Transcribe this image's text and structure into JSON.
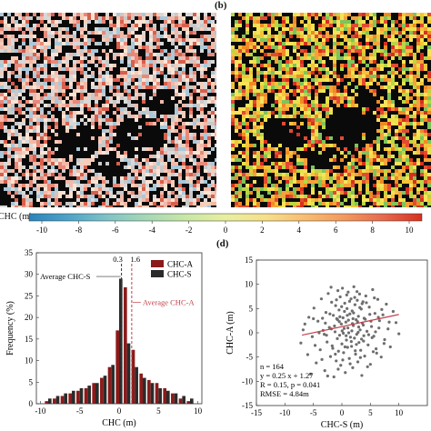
{
  "figure": {
    "panel_labels": {
      "b": "(b)",
      "d": "(d)"
    }
  },
  "colorbar": {
    "label": "CHC (m)",
    "ticks": [
      "-10",
      "-8",
      "-6",
      "-4",
      "-2",
      "0",
      "2",
      "4",
      "6",
      "8",
      "10"
    ],
    "colors": [
      "#2b83ba",
      "#4fa3c9",
      "#80c4c6",
      "#a6d8b6",
      "#c9e7a6",
      "#e8efa0",
      "#f7e08c",
      "#f9bd72",
      "#f39a5e",
      "#e66b4f",
      "#d7301f"
    ]
  },
  "chart_data": [
    {
      "type": "bar",
      "panel": "c",
      "title": "",
      "xlabel": "CHC (m)",
      "ylabel": "Frequency (%)",
      "xlim": [
        -10.5,
        10.5
      ],
      "ylim": [
        0,
        35
      ],
      "xticks": [
        "-10",
        "-5",
        "0",
        "5",
        "10"
      ],
      "yticks": [
        "0",
        "5",
        "10",
        "15",
        "20",
        "25",
        "30",
        "35"
      ],
      "bin_centers": [
        -9,
        -8,
        -7,
        -6,
        -5,
        -4,
        -3,
        -2,
        -1,
        0,
        1,
        2,
        3,
        4,
        5,
        6,
        7,
        8,
        9
      ],
      "series": [
        {
          "name": "CHC-A",
          "color": "#8b1a1a",
          "values": [
            0.6,
            1.2,
            1.8,
            2.4,
            3.0,
            3.6,
            4.8,
            6.0,
            8.5,
            17.0,
            27.0,
            12.5,
            7.0,
            5.5,
            4.8,
            3.6,
            2.4,
            1.2,
            0.6
          ]
        },
        {
          "name": "CHC-S",
          "color": "#2b2b2b",
          "values": [
            1.2,
            1.8,
            2.4,
            3.0,
            3.6,
            4.2,
            4.8,
            6.5,
            9.0,
            29.0,
            14.0,
            8.5,
            6.0,
            4.8,
            3.6,
            3.0,
            2.4,
            1.8,
            1.2
          ]
        }
      ],
      "annotations": [
        {
          "text": "Average CHC-S",
          "x": 0.3
        },
        {
          "text": "Average CHC-A",
          "x": 1.6
        },
        {
          "text": "0.3",
          "x": 0.3
        },
        {
          "text": "1.6",
          "x": 1.6
        }
      ],
      "legend_position": "top-right"
    },
    {
      "type": "scatter",
      "panel": "d",
      "title": "",
      "xlabel": "CHC-S (m)",
      "ylabel": "CHC-A (m)",
      "xlim": [
        -15,
        15
      ],
      "ylim": [
        -15,
        15
      ],
      "xticks": [
        "-15",
        "-10",
        "-5",
        "0",
        "5",
        "10"
      ],
      "yticks": [
        "-15",
        "-10",
        "-5",
        "0",
        "5",
        "10",
        "15"
      ],
      "point_color": "#6e6e6e",
      "fit_line": {
        "slope": 0.25,
        "intercept": 1.27,
        "x_range": [
          -7,
          10
        ],
        "color": "#c0404a"
      },
      "stats": [
        "n = 164",
        "y = 0.25 x + 1.27",
        "R = 0.15, p = 0.041",
        "RMSE = 4.84m"
      ],
      "points": [
        [
          -7.2,
          -2.1
        ],
        [
          -6.5,
          1.8
        ],
        [
          -6.0,
          -4.5
        ],
        [
          -5.8,
          3.2
        ],
        [
          -5.2,
          -0.8
        ],
        [
          -4.9,
          5.1
        ],
        [
          -4.5,
          -6.2
        ],
        [
          -4.2,
          2.4
        ],
        [
          -3.8,
          -3.5
        ],
        [
          -3.6,
          7.0
        ],
        [
          -3.3,
          0.5
        ],
        [
          -3.0,
          -7.8
        ],
        [
          -2.8,
          4.2
        ],
        [
          -2.6,
          -1.9
        ],
        [
          -2.4,
          8.1
        ],
        [
          -2.2,
          1.1
        ],
        [
          -2.0,
          -4.9
        ],
        [
          -1.8,
          6.3
        ],
        [
          -1.7,
          -2.7
        ],
        [
          -1.5,
          3.6
        ],
        [
          -1.4,
          -9.1
        ],
        [
          -1.2,
          0.2
        ],
        [
          -1.1,
          5.6
        ],
        [
          -1.0,
          -5.8
        ],
        [
          -0.9,
          2.9
        ],
        [
          -0.8,
          -1.2
        ],
        [
          -0.7,
          8.7
        ],
        [
          -0.6,
          -3.8
        ],
        [
          -0.5,
          4.7
        ],
        [
          -0.4,
          -0.5
        ],
        [
          -0.3,
          7.4
        ],
        [
          -0.2,
          -6.7
        ],
        [
          -0.1,
          1.8
        ],
        [
          0.0,
          -2.3
        ],
        [
          0.1,
          9.2
        ],
        [
          0.2,
          3.1
        ],
        [
          0.3,
          -4.1
        ],
        [
          0.4,
          0.9
        ],
        [
          0.5,
          6.1
        ],
        [
          0.6,
          -8.2
        ],
        [
          0.7,
          2.2
        ],
        [
          0.8,
          -1.5
        ],
        [
          0.9,
          5.0
        ],
        [
          1.0,
          -3.0
        ],
        [
          1.1,
          8.4
        ],
        [
          1.2,
          0.0
        ],
        [
          1.3,
          -5.3
        ],
        [
          1.4,
          3.9
        ],
        [
          1.5,
          -0.9
        ],
        [
          1.6,
          7.0
        ],
        [
          1.7,
          -2.8
        ],
        [
          1.8,
          4.5
        ],
        [
          1.9,
          -7.2
        ],
        [
          2.0,
          1.5
        ],
        [
          2.1,
          9.5
        ],
        [
          2.2,
          -1.1
        ],
        [
          2.3,
          5.8
        ],
        [
          2.4,
          -4.4
        ],
        [
          2.5,
          2.7
        ],
        [
          2.6,
          -0.3
        ],
        [
          2.7,
          6.7
        ],
        [
          2.8,
          -6.0
        ],
        [
          2.9,
          3.4
        ],
        [
          3.0,
          -2.0
        ],
        [
          3.1,
          8.0
        ],
        [
          3.2,
          0.6
        ],
        [
          3.3,
          -3.6
        ],
        [
          3.4,
          4.9
        ],
        [
          3.5,
          -8.8
        ],
        [
          3.6,
          2.0
        ],
        [
          3.7,
          6.4
        ],
        [
          3.8,
          -1.7
        ],
        [
          3.9,
          3.0
        ],
        [
          4.0,
          -4.8
        ],
        [
          4.2,
          7.6
        ],
        [
          4.4,
          0.3
        ],
        [
          4.6,
          -2.5
        ],
        [
          4.8,
          5.3
        ],
        [
          5.0,
          -6.5
        ],
        [
          5.2,
          1.3
        ],
        [
          5.4,
          8.9
        ],
        [
          5.6,
          -0.7
        ],
        [
          5.8,
          4.0
        ],
        [
          6.0,
          -3.3
        ],
        [
          6.3,
          6.9
        ],
        [
          6.6,
          2.5
        ],
        [
          6.9,
          -5.0
        ],
        [
          7.2,
          3.7
        ],
        [
          7.5,
          -1.4
        ],
        [
          7.8,
          5.9
        ],
        [
          8.1,
          0.8
        ],
        [
          8.5,
          -2.9
        ],
        [
          9.0,
          4.4
        ],
        [
          9.5,
          2.1
        ],
        [
          10.0,
          -0.2
        ],
        [
          -5.5,
          -8.5
        ],
        [
          -4.0,
          0.0
        ],
        [
          -3.5,
          -5.5
        ],
        [
          -2.9,
          2.0
        ],
        [
          -2.5,
          -8.9
        ],
        [
          -1.9,
          9.4
        ],
        [
          -1.6,
          -3.2
        ],
        [
          -1.3,
          1.4
        ],
        [
          -0.95,
          6.8
        ],
        [
          -0.65,
          -7.5
        ],
        [
          -0.35,
          3.3
        ],
        [
          -0.05,
          5.4
        ],
        [
          0.25,
          -0.1
        ],
        [
          0.55,
          -2.9
        ],
        [
          0.85,
          7.8
        ],
        [
          1.15,
          2.6
        ],
        [
          1.45,
          -6.4
        ],
        [
          1.75,
          0.4
        ],
        [
          2.05,
          4.1
        ],
        [
          2.35,
          -3.7
        ],
        [
          2.65,
          8.5
        ],
        [
          2.95,
          1.2
        ],
        [
          3.25,
          -5.1
        ],
        [
          3.55,
          6.0
        ],
        [
          3.85,
          -0.6
        ],
        [
          4.1,
          2.8
        ],
        [
          4.5,
          -7.0
        ],
        [
          4.9,
          3.8
        ],
        [
          5.3,
          -1.0
        ],
        [
          5.7,
          7.2
        ],
        [
          6.1,
          -4.2
        ],
        [
          6.5,
          1.0
        ],
        [
          7.0,
          4.8
        ],
        [
          -6.8,
          0.6
        ],
        [
          -5.0,
          2.9
        ],
        [
          -4.7,
          -2.6
        ],
        [
          -3.1,
          -0.3
        ],
        [
          -2.1,
          3.9
        ],
        [
          -1.15,
          -4.4
        ],
        [
          -0.45,
          2.3
        ],
        [
          0.15,
          -5.6
        ],
        [
          0.45,
          4.4
        ],
        [
          0.75,
          -0.6
        ],
        [
          1.05,
          1.0
        ],
        [
          1.35,
          6.5
        ],
        [
          1.65,
          -1.8
        ],
        [
          1.95,
          2.9
        ],
        [
          2.25,
          7.3
        ],
        [
          2.55,
          -2.4
        ],
        [
          2.85,
          0.1
        ],
        [
          3.15,
          5.2
        ],
        [
          3.45,
          -1.3
        ],
        [
          3.75,
          1.6
        ],
        [
          4.3,
          6.2
        ],
        [
          4.7,
          -0.4
        ],
        [
          5.1,
          2.4
        ],
        [
          5.5,
          -3.9
        ],
        [
          5.9,
          0.2
        ],
        [
          6.4,
          3.2
        ],
        [
          7.4,
          -2.2
        ],
        [
          8.3,
          2.2
        ],
        [
          -3.4,
          3.0
        ],
        [
          -2.7,
          -0.5
        ],
        [
          -1.85,
          0.8
        ],
        [
          -0.75,
          2.7
        ],
        [
          0.05,
          0.4
        ],
        [
          0.95,
          3.6
        ],
        [
          1.85,
          1.9
        ],
        [
          2.75,
          2.3
        ]
      ]
    }
  ]
}
